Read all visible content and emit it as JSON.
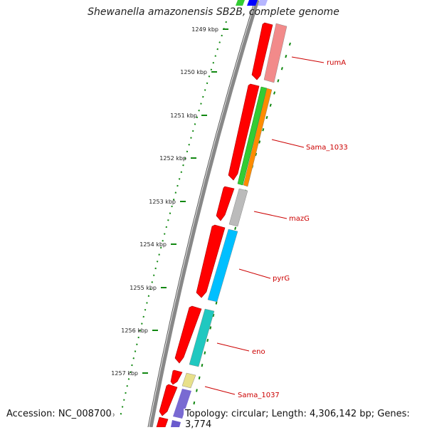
{
  "title": "Shewanella amazonensis SB2B, complete genome",
  "footer": {
    "accession": "Accession: NC_008700",
    "topology": "Topology: circular; Length: 4,306,142 bp; Genes: 3,774"
  },
  "ticks": [
    {
      "label": "1249 kbp"
    },
    {
      "label": "1250 kbp"
    },
    {
      "label": "1251 kbp"
    },
    {
      "label": "1252 kbp"
    },
    {
      "label": "1253 kbp"
    },
    {
      "label": "1254 kbp"
    },
    {
      "label": "1255 kbp"
    },
    {
      "label": "1256 kbp"
    },
    {
      "label": "1257 kbp"
    }
  ],
  "genes": [
    {
      "name": "rumA",
      "color": "#f28a8a"
    },
    {
      "name": "Sama_1033",
      "color": "#ff8c00"
    },
    {
      "name": "mazG",
      "color": "#bbbbbb"
    },
    {
      "name": "pyrG",
      "color": "#00bfff"
    },
    {
      "name": "eno",
      "color": "#20c8c0"
    },
    {
      "name": "Sama_1037",
      "color": "#e8e08a"
    }
  ],
  "colors": {
    "cds_track": "#ff0000",
    "backbone": "#777777",
    "tick_mark": "#118811",
    "label_line": "#cc0000",
    "extra_green": "#33cc33",
    "extra_purple": "#6a5acd",
    "extra_blue": "#0000ff"
  }
}
